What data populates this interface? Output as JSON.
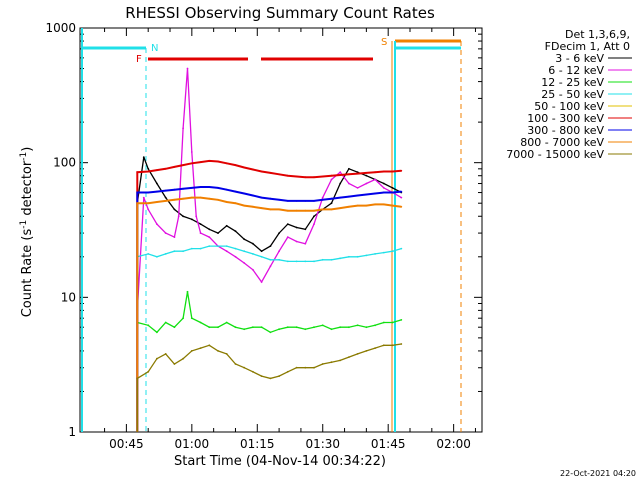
{
  "chart_data": {
    "type": "line",
    "title": "RHESSI Observing Summary Count Rates",
    "xlabel": "Start Time (04-Nov-14 00:34:22)",
    "ylabel_main": "Count Rate (s",
    "ylabel_sup1": "-1",
    "ylabel_mid": " detector",
    "ylabel_sup2": "-1",
    "ylabel_end": ")",
    "yscale": "log",
    "ylim": [
      1,
      1000
    ],
    "xlim_minutes": [
      34.37,
      126.5
    ],
    "x_ticks": [
      {
        "min": 45,
        "label": "00:45"
      },
      {
        "min": 60,
        "label": "01:00"
      },
      {
        "min": 75,
        "label": "01:15"
      },
      {
        "min": 90,
        "label": "01:30"
      },
      {
        "min": 105,
        "label": "01:45"
      },
      {
        "min": 120,
        "label": "02:00"
      }
    ],
    "y_ticks": [
      {
        "value": 1,
        "label": "1"
      },
      {
        "value": 10,
        "label": "10"
      },
      {
        "value": 100,
        "label": "100"
      },
      {
        "value": 1000,
        "label": "1000"
      }
    ],
    "legend": {
      "header1": "Det 1,3,6,9,",
      "header2": "FDecim 1, Att 0",
      "placement": "right"
    },
    "footer_date": "22-Oct-2021 04:20",
    "flags": {
      "N_label": "N",
      "F_label": "F",
      "S_label": "S"
    },
    "colors": {
      "black": "#000000",
      "magenta": "#e010e0",
      "green": "#10e010",
      "cyan": "#20e0e8",
      "yellow": "#e0c000",
      "red": "#e00000",
      "blue": "#0000e8",
      "orange": "#f08000",
      "olive": "#8a7a00"
    },
    "series": [
      {
        "name": "3 - 6 keV",
        "color": "#000000",
        "x": [
          47.5,
          49,
          50,
          52,
          54,
          56,
          58,
          60,
          62,
          64,
          66,
          68,
          70,
          72,
          74,
          76,
          78,
          80,
          82,
          84,
          86,
          88,
          90,
          92,
          94,
          96,
          98,
          100,
          102,
          104,
          106,
          108
        ],
        "y": [
          50,
          110,
          90,
          70,
          55,
          45,
          40,
          38,
          35,
          32,
          30,
          34,
          31,
          27,
          25,
          22,
          24,
          30,
          35,
          33,
          32,
          40,
          45,
          50,
          70,
          90,
          85,
          80,
          75,
          70,
          65,
          60
        ]
      },
      {
        "name": "6 - 12 keV",
        "color": "#e010e0",
        "x": [
          47.5,
          49,
          50,
          52,
          54,
          56,
          57,
          58,
          59,
          60,
          61,
          62,
          64,
          66,
          68,
          70,
          72,
          74,
          76,
          78,
          80,
          82,
          84,
          86,
          88,
          90,
          92,
          94,
          96,
          98,
          100,
          102,
          104,
          106,
          108
        ],
        "y": [
          8,
          55,
          45,
          35,
          30,
          28,
          40,
          180,
          500,
          120,
          40,
          30,
          28,
          24,
          22,
          20,
          18,
          16,
          13,
          17,
          22,
          28,
          26,
          25,
          35,
          55,
          75,
          85,
          70,
          65,
          70,
          75,
          65,
          60,
          55
        ]
      },
      {
        "name": "12 - 25 keV",
        "color": "#10e010",
        "x": [
          47.5,
          50,
          52,
          54,
          56,
          58,
          59,
          60,
          62,
          64,
          66,
          68,
          70,
          72,
          74,
          76,
          78,
          80,
          82,
          84,
          86,
          88,
          90,
          92,
          94,
          96,
          98,
          100,
          102,
          104,
          106,
          108
        ],
        "y": [
          6.5,
          6.2,
          5.5,
          6.5,
          6.0,
          7.0,
          11,
          7.0,
          6.5,
          6.0,
          6.0,
          6.5,
          6.0,
          5.8,
          6.0,
          6.0,
          5.5,
          5.8,
          6.0,
          6.0,
          5.8,
          6.0,
          6.2,
          5.8,
          6.0,
          6.0,
          6.2,
          6.0,
          6.2,
          6.5,
          6.5,
          6.8
        ]
      },
      {
        "name": "25 - 50 keV",
        "color": "#20e0e8",
        "x": [
          47.5,
          50,
          52,
          54,
          56,
          58,
          60,
          62,
          64,
          66,
          68,
          70,
          72,
          74,
          76,
          78,
          80,
          82,
          84,
          86,
          88,
          90,
          92,
          94,
          96,
          98,
          100,
          102,
          104,
          106,
          108
        ],
        "y": [
          20,
          21,
          20,
          21,
          22,
          22,
          23,
          23,
          24,
          24,
          24,
          23,
          22,
          21,
          20,
          19,
          19,
          18.5,
          18.5,
          18.5,
          18.5,
          19,
          19,
          19.5,
          20,
          20,
          20.5,
          21,
          21.5,
          22,
          23
        ]
      },
      {
        "name": "50 - 100 keV",
        "color": "#e0c000",
        "x": [],
        "y": []
      },
      {
        "name": "100 - 300 keV",
        "color": "#e00000",
        "x": [
          47.5,
          50,
          52,
          54,
          56,
          58,
          60,
          62,
          64,
          66,
          68,
          70,
          72,
          74,
          76,
          78,
          80,
          82,
          84,
          86,
          88,
          90,
          92,
          94,
          96,
          98,
          100,
          102,
          104,
          106,
          108
        ],
        "y": [
          85,
          86,
          88,
          90,
          93,
          96,
          99,
          101,
          103,
          102,
          99,
          96,
          92,
          89,
          86,
          84,
          82,
          80,
          79,
          78,
          78,
          79,
          80,
          81,
          82,
          83,
          84,
          85,
          86,
          86,
          87
        ]
      },
      {
        "name": "300 - 800 keV",
        "color": "#0000e8",
        "x": [
          47.5,
          50,
          52,
          54,
          56,
          58,
          60,
          62,
          64,
          66,
          68,
          70,
          72,
          74,
          76,
          78,
          80,
          82,
          84,
          86,
          88,
          90,
          92,
          94,
          96,
          98,
          100,
          102,
          104,
          106,
          108
        ],
        "y": [
          60,
          60,
          61,
          62,
          63,
          64,
          65,
          66,
          66,
          65,
          63,
          61,
          59,
          57,
          55,
          54,
          53,
          52,
          52,
          52,
          52,
          53,
          54,
          55,
          56,
          57,
          58,
          59,
          60,
          60,
          61
        ]
      },
      {
        "name": "800 - 7000 keV",
        "color": "#f08000",
        "x": [
          47.5,
          50,
          52,
          54,
          56,
          58,
          60,
          62,
          64,
          66,
          68,
          70,
          72,
          74,
          76,
          78,
          80,
          82,
          84,
          86,
          88,
          90,
          92,
          94,
          96,
          98,
          100,
          102,
          104,
          106,
          108
        ],
        "y": [
          50,
          50,
          51,
          52,
          53,
          54,
          55,
          55,
          54,
          53,
          51,
          50,
          48,
          47,
          46,
          45,
          45,
          44,
          44,
          44,
          44,
          45,
          45,
          46,
          47,
          48,
          48,
          49,
          49,
          48,
          47
        ]
      },
      {
        "name": "7000 - 15000 keV",
        "color": "#8a7a00",
        "x": [
          47.5,
          50,
          52,
          54,
          56,
          58,
          60,
          62,
          64,
          66,
          68,
          70,
          72,
          74,
          76,
          78,
          80,
          82,
          84,
          86,
          88,
          90,
          92,
          94,
          96,
          98,
          100,
          102,
          104,
          106,
          108
        ],
        "y": [
          2.5,
          2.8,
          3.5,
          3.8,
          3.2,
          3.5,
          4.0,
          4.2,
          4.4,
          4.0,
          3.8,
          3.2,
          3.0,
          2.8,
          2.6,
          2.5,
          2.6,
          2.8,
          3.0,
          3.0,
          3.0,
          3.2,
          3.3,
          3.4,
          3.6,
          3.8,
          4.0,
          4.2,
          4.4,
          4.4,
          4.5
        ]
      }
    ]
  }
}
